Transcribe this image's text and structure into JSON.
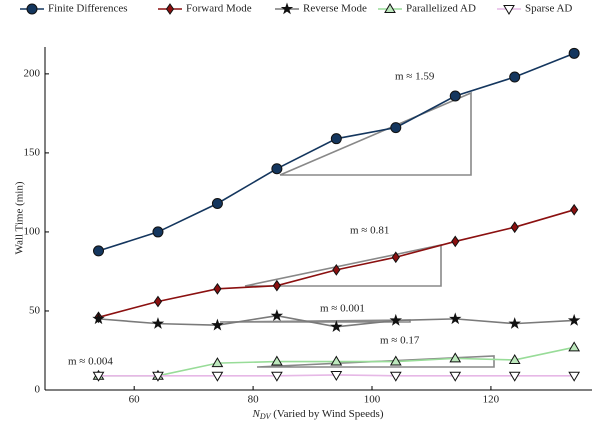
{
  "chart_data": {
    "type": "line",
    "xlabel": [
      "N",
      "DV",
      " (Varied by Wind Speeds)"
    ],
    "ylabel": "Wall Time (min)",
    "x": [
      54,
      64,
      74,
      84,
      94,
      104,
      114,
      124,
      134
    ],
    "xlim": [
      45,
      137
    ],
    "xticks": [
      60,
      80,
      100,
      120
    ],
    "ylim": [
      0,
      217
    ],
    "yticks": [
      0,
      50,
      100,
      150,
      200
    ],
    "series": [
      {
        "name": "Finite Differences",
        "color": "#14365e",
        "marker": "circle",
        "marker_fill": "#14365e",
        "values": [
          88,
          100,
          118,
          140,
          159,
          166,
          186,
          198,
          213
        ]
      },
      {
        "name": "Forward Mode",
        "color": "#8b1010",
        "marker": "diamond",
        "marker_fill": "#8b1010",
        "values": [
          46,
          56,
          64,
          66,
          76,
          84,
          94,
          103,
          114
        ]
      },
      {
        "name": "Reverse Mode",
        "color": "#7a7a7a",
        "marker": "star",
        "marker_fill": "#111111",
        "values": [
          45,
          42,
          41,
          47,
          40,
          44,
          45,
          42,
          44
        ]
      },
      {
        "name": "Parallelized AD",
        "color": "#98dc98",
        "marker": "triangle",
        "marker_fill": "#bde8bd",
        "values": [
          9,
          9,
          17,
          18,
          18,
          18,
          20,
          19,
          27
        ]
      },
      {
        "name": "Sparse AD",
        "color": "#e6b8e6",
        "marker": "triangle-down",
        "marker_fill": "#ffffff",
        "values": [
          9,
          9,
          9,
          9,
          9.5,
          9,
          9,
          9,
          9
        ]
      }
    ],
    "annotations": [
      "m ≈ 1.59",
      "m ≈ 0.81",
      "m ≈ 0.001",
      "m ≈ 0.17",
      "m ≈ 0.004"
    ]
  }
}
